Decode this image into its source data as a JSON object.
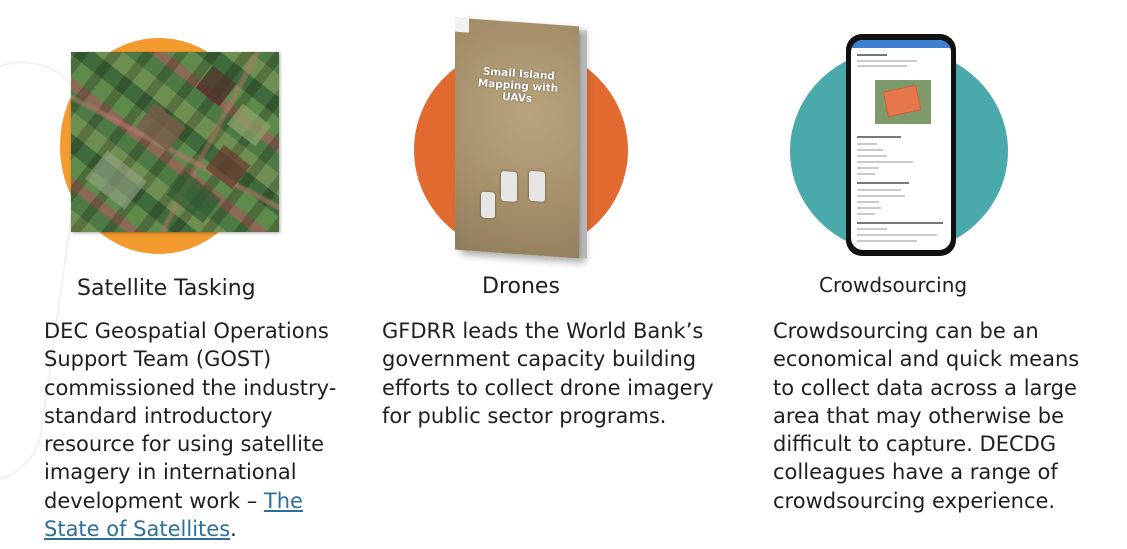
{
  "columns": [
    {
      "heading": "Satellite Tasking",
      "body_lines": [
        "DEC Geospatial Operations",
        "Support Team (GOST)",
        "commissioned the industry-",
        "standard introductory",
        "resource for using satellite",
        "imagery in international",
        "development work – "
      ],
      "link_part1": "The",
      "link_part2": "State of Satellites",
      "trailing": ".",
      "circle_color": "#f39b2f"
    },
    {
      "heading": "Drones",
      "body_lines": [
        "GFDRR leads the World Bank’s",
        "government capacity building",
        "efforts to collect drone imagery",
        "for public sector programs."
      ],
      "book_title": "Small Island Mapping with UAVs",
      "circle_color": "#e06a30"
    },
    {
      "heading": "Crowdsourcing",
      "body_lines": [
        "Crowdsourcing can be an",
        "economical and quick means",
        "to collect data across a large",
        "area that may otherwise be",
        "difficult to capture. DECDG",
        "colleagues have a range of",
        "crowdsourcing experience."
      ],
      "circle_color": "#4aa9ab"
    }
  ],
  "colors": {
    "link": "#2b6f9a",
    "text": "#1f1f1f"
  }
}
